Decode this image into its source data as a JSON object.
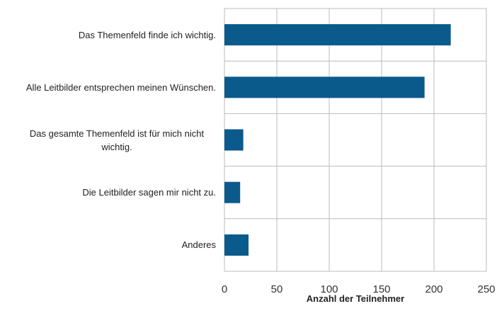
{
  "chart_data": {
    "type": "bar",
    "orientation": "horizontal",
    "x_label": "Anzahl der Teilnehmer",
    "categories": [
      "Das Themenfeld finde ich wichtig.",
      "Alle Leitbilder entsprechen meinen Wünschen.",
      "Das gesamte Themenfeld ist für mich nicht wichtig.",
      "Die Leitbilder sagen mir nicht zu.",
      "Anderes"
    ],
    "values": [
      216,
      191,
      18,
      15,
      23
    ],
    "color": "#0a5a8c",
    "xlim": [
      0,
      250
    ],
    "xticks": [
      0,
      50,
      100,
      150,
      200,
      250
    ],
    "grid": true
  }
}
